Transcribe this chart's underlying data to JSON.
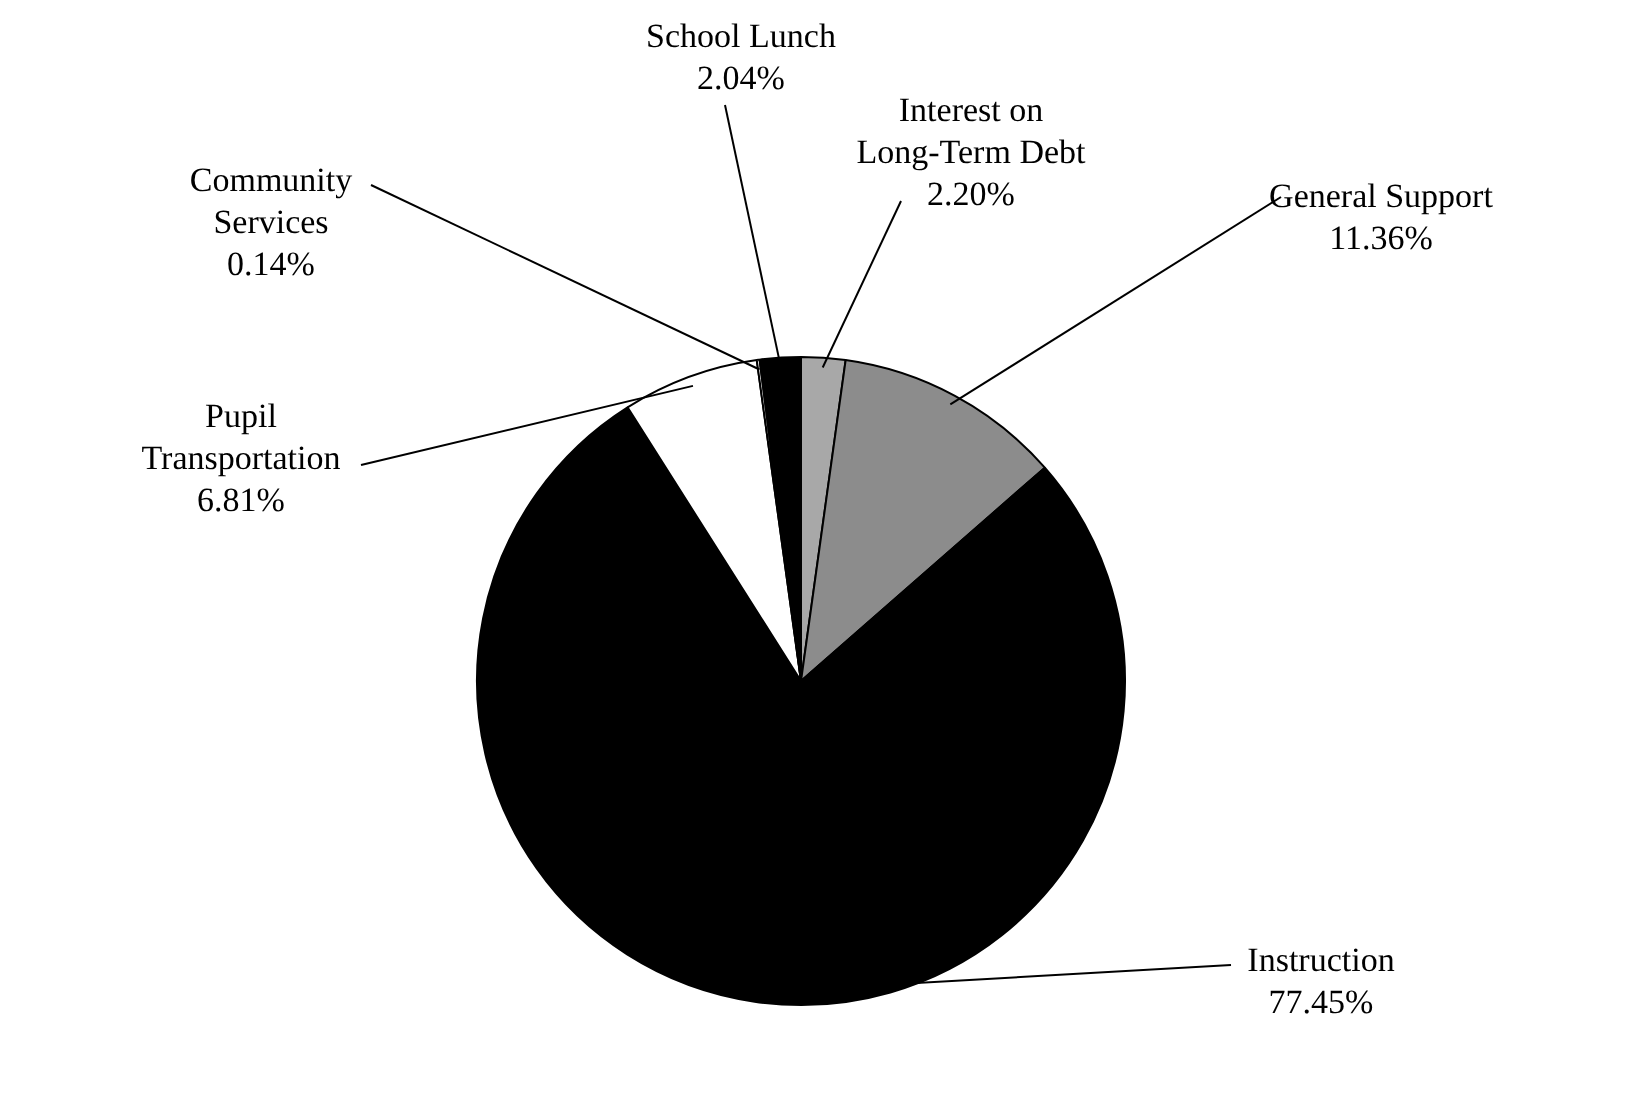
{
  "chart_data": {
    "type": "pie",
    "categories": [
      "Interest on Long-Term Debt",
      "General Support",
      "Instruction",
      "Pupil Transportation",
      "Community Services",
      "School Lunch"
    ],
    "values": [
      2.2,
      11.36,
      77.45,
      6.81,
      0.14,
      2.04
    ],
    "value_labels": [
      "2.20%",
      "11.36%",
      "77.45%",
      "6.81%",
      "0.14%",
      "2.04%"
    ],
    "colors": [
      "#a8a8a8",
      "#8c8c8c",
      "#000000",
      "#ffffff",
      "#ffffff",
      "#000000"
    ]
  }
}
